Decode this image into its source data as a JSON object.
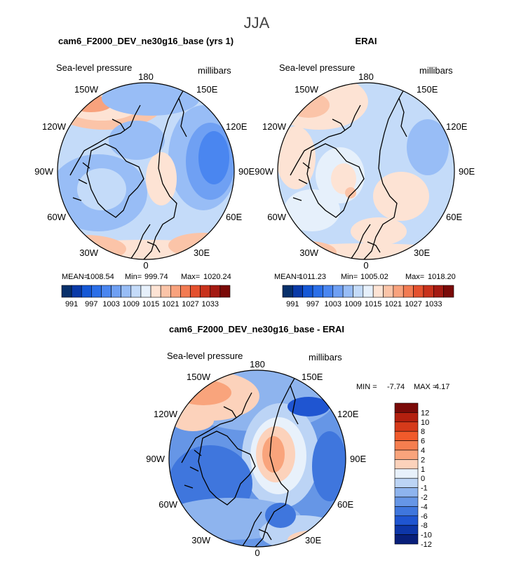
{
  "season_title": "JJA",
  "colors": {
    "ocean_light": "#d9ecf8",
    "land_line": "#000000",
    "high_orange": "#f4a582",
    "high_peach": "#fddbc7",
    "low_blue": "#92c5de",
    "low_blue_mid": "#6baed6",
    "low_blue_dark": "#4a80e0"
  },
  "chart_data": [
    {
      "type": "heatmap",
      "projection": "north-polar-stereographic",
      "title": "cam6_F2000_DEV_ne30g16_base (yrs 1)",
      "variable_label": "Sea-level pressure",
      "units_label": "millibars",
      "lon_labels": [
        "180",
        "150E",
        "120E",
        "90E",
        "60E",
        "30E",
        "0",
        "30W",
        "60W",
        "90W",
        "120W",
        "150W"
      ],
      "stats": {
        "mean_label": "MEAN=",
        "mean": "1008.54",
        "min_label": "Min=",
        "min": "999.74",
        "max_label": "Max=",
        "max": "1020.24"
      },
      "colorbar": {
        "orientation": "horizontal",
        "colors": [
          "#08306b",
          "#0a3aa8",
          "#1558d6",
          "#2b6fe8",
          "#4a86f0",
          "#6fa0f3",
          "#98bdf6",
          "#c4dbf9",
          "#e6f0fb",
          "#fde3d4",
          "#fbc4a8",
          "#f8a27d",
          "#f27b52",
          "#e4512e",
          "#c8321c",
          "#a41a12",
          "#7a0a08"
        ],
        "tick_labels": [
          "991",
          "997",
          "1003",
          "1009",
          "1015",
          "1021",
          "1027",
          "1033"
        ]
      }
    },
    {
      "type": "heatmap",
      "projection": "north-polar-stereographic",
      "title": "ERAI",
      "variable_label": "Sea-level pressure",
      "units_label": "millibars",
      "lon_labels": [
        "180",
        "150E",
        "120E",
        "90E",
        "60E",
        "30E",
        "0",
        "30W",
        "60W",
        "90W",
        "120W",
        "150W"
      ],
      "stats": {
        "mean_label": "MEAN=",
        "mean": "1011.23",
        "min_label": "Min=",
        "min": "1005.02",
        "max_label": "Max=",
        "max": "1018.20"
      },
      "colorbar": {
        "orientation": "horizontal",
        "colors": [
          "#08306b",
          "#0a3aa8",
          "#1558d6",
          "#2b6fe8",
          "#4a86f0",
          "#6fa0f3",
          "#98bdf6",
          "#c4dbf9",
          "#e6f0fb",
          "#fde3d4",
          "#fbc4a8",
          "#f8a27d",
          "#f27b52",
          "#e4512e",
          "#c8321c",
          "#a41a12",
          "#7a0a08"
        ],
        "tick_labels": [
          "991",
          "997",
          "1003",
          "1009",
          "1015",
          "1021",
          "1027",
          "1033"
        ]
      }
    },
    {
      "type": "heatmap",
      "projection": "north-polar-stereographic",
      "title": "cam6_F2000_DEV_ne30g16_base - ERAI",
      "variable_label": "Sea-level pressure",
      "units_label": "millibars",
      "lon_labels": [
        "180",
        "150E",
        "120E",
        "90E",
        "60E",
        "30E",
        "0",
        "30W",
        "60W",
        "90W",
        "120W",
        "150W"
      ],
      "stats": {
        "min_label": "MIN =",
        "min": "-7.74",
        "max_label": "MAX =",
        "max": "4.17"
      },
      "colorbar": {
        "orientation": "vertical",
        "colors": [
          "#7a0a08",
          "#b3200f",
          "#d63a1a",
          "#f05a2b",
          "#f57e4f",
          "#f9a47c",
          "#fcd2bb",
          "#e8f1fb",
          "#bcd4f5",
          "#8eb4ee",
          "#6696e6",
          "#3f76dd",
          "#1f55d1",
          "#0d36a8",
          "#081f7a"
        ],
        "tick_labels": [
          "12",
          "10",
          "8",
          "6",
          "4",
          "2",
          "1",
          "0",
          "-1",
          "-2",
          "-4",
          "-6",
          "-8",
          "-10",
          "-12"
        ]
      }
    }
  ]
}
